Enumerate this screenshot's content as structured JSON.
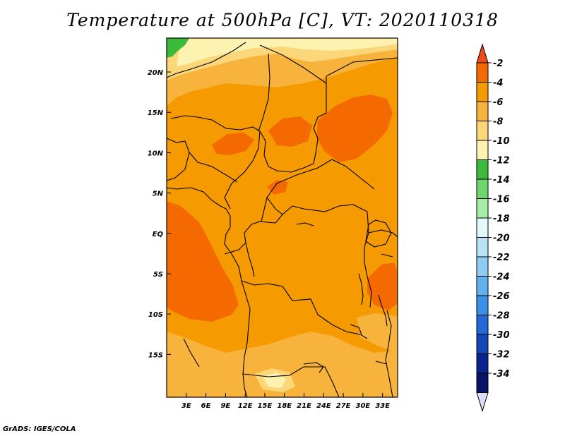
{
  "title": "Temperature at 500hPa [C], VT: 2020110318",
  "credit": "GrADS: IGES/COLA",
  "lat_axis": {
    "labels": [
      {
        "text": "20N",
        "value": 20
      },
      {
        "text": "15N",
        "value": 15
      },
      {
        "text": "10N",
        "value": 10
      },
      {
        "text": "5N",
        "value": 5
      },
      {
        "text": "EQ",
        "value": 0
      },
      {
        "text": "5S",
        "value": -5
      },
      {
        "text": "10S",
        "value": -10
      },
      {
        "text": "15S",
        "value": -15
      }
    ]
  },
  "lon_axis": {
    "labels": [
      {
        "text": "3E",
        "value": 3
      },
      {
        "text": "6E",
        "value": 6
      },
      {
        "text": "9E",
        "value": 9
      },
      {
        "text": "12E",
        "value": 12
      },
      {
        "text": "15E",
        "value": 15
      },
      {
        "text": "18E",
        "value": 18
      },
      {
        "text": "21E",
        "value": 21
      },
      {
        "text": "24E",
        "value": 24
      },
      {
        "text": "27E",
        "value": 27
      },
      {
        "text": "30E",
        "value": 30
      },
      {
        "text": "33E",
        "value": 33
      }
    ]
  },
  "colorbar": {
    "labels": [
      "-2",
      "-4",
      "-6",
      "-8",
      "-10",
      "-12",
      "-14",
      "-16",
      "-18",
      "-20",
      "-22",
      "-24",
      "-26",
      "-28",
      "-30",
      "-32",
      "-34"
    ],
    "colors": [
      "#ec4a18",
      "#f46a00",
      "#f59a00",
      "#f8b33c",
      "#fbd77a",
      "#fdf2b0",
      "#3cba3c",
      "#6fd66f",
      "#a6eba6",
      "#e1f9f9",
      "#b7e3f5",
      "#8ecdf2",
      "#60b1ec",
      "#3a90e6",
      "#2368d6",
      "#1447b6",
      "#0a238f",
      "#0a1466",
      "#dcdcf6"
    ]
  },
  "map_colors": {
    "base": "#f59a00",
    "warm": "#f46a00",
    "light": "#f8b33c",
    "pale": "#fbd77a",
    "palest": "#fdf2b0",
    "green": "#3cba3c",
    "border": "#000000"
  }
}
